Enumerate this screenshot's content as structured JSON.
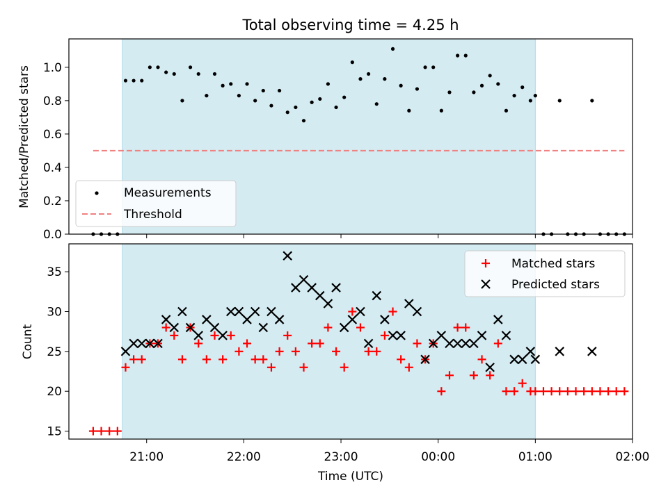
{
  "chart_data": [
    {
      "type": "scatter",
      "title": "Total observing time = 4.25 h",
      "ylabel": "Matched/Predicted stars",
      "xlabel": "",
      "xlim": [
        "20:12",
        "02:00"
      ],
      "ylim": [
        0,
        1.17
      ],
      "yticks": [
        "0.0",
        "0.2",
        "0.4",
        "0.6",
        "0.8",
        "1.0"
      ],
      "shaded_interval": [
        "20:45",
        "01:00"
      ],
      "grid": false,
      "legend": {
        "position": "lower-left",
        "entries": [
          "Measurements",
          "Threshold"
        ]
      },
      "series": [
        {
          "name": "Measurements",
          "color": "#000000",
          "marker": "dot",
          "points": [
            [
              "20:27",
              0.0
            ],
            [
              "20:32",
              0.0
            ],
            [
              "20:37",
              0.0
            ],
            [
              "20:42",
              0.0
            ],
            [
              "20:47",
              0.92
            ],
            [
              "20:52",
              0.92
            ],
            [
              "20:57",
              0.92
            ],
            [
              "21:02",
              1.0
            ],
            [
              "21:07",
              1.0
            ],
            [
              "21:12",
              0.97
            ],
            [
              "21:17",
              0.96
            ],
            [
              "21:22",
              0.8
            ],
            [
              "21:27",
              1.0
            ],
            [
              "21:32",
              0.96
            ],
            [
              "21:37",
              0.83
            ],
            [
              "21:42",
              0.96
            ],
            [
              "21:47",
              0.89
            ],
            [
              "21:52",
              0.9
            ],
            [
              "21:57",
              0.83
            ],
            [
              "22:02",
              0.9
            ],
            [
              "22:07",
              0.8
            ],
            [
              "22:12",
              0.86
            ],
            [
              "22:17",
              0.77
            ],
            [
              "22:22",
              0.86
            ],
            [
              "22:27",
              0.73
            ],
            [
              "22:32",
              0.76
            ],
            [
              "22:37",
              0.68
            ],
            [
              "22:42",
              0.79
            ],
            [
              "22:47",
              0.81
            ],
            [
              "22:52",
              0.9
            ],
            [
              "22:57",
              0.76
            ],
            [
              "23:02",
              0.82
            ],
            [
              "23:07",
              1.03
            ],
            [
              "23:12",
              0.93
            ],
            [
              "23:17",
              0.96
            ],
            [
              "23:22",
              0.78
            ],
            [
              "23:27",
              0.93
            ],
            [
              "23:32",
              1.11
            ],
            [
              "23:37",
              0.89
            ],
            [
              "23:42",
              0.74
            ],
            [
              "23:47",
              0.87
            ],
            [
              "23:52",
              1.0
            ],
            [
              "23:57",
              1.0
            ],
            [
              "00:02",
              0.74
            ],
            [
              "00:07",
              0.85
            ],
            [
              "00:12",
              1.07
            ],
            [
              "00:17",
              1.07
            ],
            [
              "00:22",
              0.85
            ],
            [
              "00:27",
              0.89
            ],
            [
              "00:32",
              0.95
            ],
            [
              "00:37",
              0.9
            ],
            [
              "00:42",
              0.74
            ],
            [
              "00:47",
              0.83
            ],
            [
              "00:52",
              0.88
            ],
            [
              "00:57",
              0.8
            ],
            [
              "01:00",
              0.83
            ],
            [
              "01:05",
              0.0
            ],
            [
              "01:10",
              0.0
            ],
            [
              "01:15",
              0.8
            ],
            [
              "01:20",
              0.0
            ],
            [
              "01:25",
              0.0
            ],
            [
              "01:30",
              0.0
            ],
            [
              "01:35",
              0.8
            ],
            [
              "01:40",
              0.0
            ],
            [
              "01:45",
              0.0
            ],
            [
              "01:50",
              0.0
            ],
            [
              "01:55",
              0.0
            ]
          ]
        },
        {
          "name": "Threshold",
          "color": "#f08080",
          "line": "dashed",
          "x": [
            "20:27",
            "01:55"
          ],
          "y": [
            0.5,
            0.5
          ]
        }
      ]
    },
    {
      "type": "scatter",
      "title": "",
      "ylabel": "Count",
      "xlabel": "Time (UTC)",
      "xlim": [
        "20:12",
        "02:00"
      ],
      "ylim": [
        14,
        38.5
      ],
      "yticks": [
        "15",
        "20",
        "25",
        "30",
        "35"
      ],
      "xticks": [
        "21:00",
        "22:00",
        "23:00",
        "00:00",
        "01:00",
        "02:00"
      ],
      "shaded_interval": [
        "20:45",
        "01:00"
      ],
      "grid": false,
      "legend": {
        "position": "top-right",
        "entries": [
          "Matched stars",
          "Predicted stars"
        ]
      },
      "series": [
        {
          "name": "Matched stars",
          "color": "#ff0000",
          "marker": "plus",
          "points": [
            [
              "20:27",
              15
            ],
            [
              "20:32",
              15
            ],
            [
              "20:37",
              15
            ],
            [
              "20:42",
              15
            ],
            [
              "20:47",
              23
            ],
            [
              "20:52",
              24
            ],
            [
              "20:57",
              24
            ],
            [
              "21:02",
              26
            ],
            [
              "21:07",
              26
            ],
            [
              "21:12",
              28
            ],
            [
              "21:17",
              27
            ],
            [
              "21:22",
              24
            ],
            [
              "21:27",
              28
            ],
            [
              "21:32",
              26
            ],
            [
              "21:37",
              24
            ],
            [
              "21:42",
              27
            ],
            [
              "21:47",
              24
            ],
            [
              "21:52",
              27
            ],
            [
              "21:57",
              25
            ],
            [
              "22:02",
              26
            ],
            [
              "22:07",
              24
            ],
            [
              "22:12",
              24
            ],
            [
              "22:17",
              23
            ],
            [
              "22:22",
              25
            ],
            [
              "22:27",
              27
            ],
            [
              "22:32",
              25
            ],
            [
              "22:37",
              23
            ],
            [
              "22:42",
              26
            ],
            [
              "22:47",
              26
            ],
            [
              "22:52",
              28
            ],
            [
              "22:57",
              25
            ],
            [
              "23:02",
              23
            ],
            [
              "23:07",
              30
            ],
            [
              "23:12",
              28
            ],
            [
              "23:17",
              25
            ],
            [
              "23:22",
              25
            ],
            [
              "23:27",
              27
            ],
            [
              "23:32",
              30
            ],
            [
              "23:37",
              24
            ],
            [
              "23:42",
              23
            ],
            [
              "23:47",
              26
            ],
            [
              "23:52",
              24
            ],
            [
              "23:57",
              26
            ],
            [
              "00:02",
              20
            ],
            [
              "00:07",
              22
            ],
            [
              "00:12",
              28
            ],
            [
              "00:17",
              28
            ],
            [
              "00:22",
              22
            ],
            [
              "00:27",
              24
            ],
            [
              "00:32",
              22
            ],
            [
              "00:37",
              26
            ],
            [
              "00:42",
              20
            ],
            [
              "00:47",
              20
            ],
            [
              "00:52",
              21
            ],
            [
              "00:57",
              20
            ],
            [
              "01:00",
              20
            ],
            [
              "01:05",
              20
            ],
            [
              "01:10",
              20
            ],
            [
              "01:15",
              20
            ],
            [
              "01:20",
              20
            ],
            [
              "01:25",
              20
            ],
            [
              "01:30",
              20
            ],
            [
              "01:35",
              20
            ],
            [
              "01:40",
              20
            ],
            [
              "01:45",
              20
            ],
            [
              "01:50",
              20
            ],
            [
              "01:55",
              20
            ]
          ]
        },
        {
          "name": "Predicted stars",
          "color": "#000000",
          "marker": "x",
          "points": [
            [
              "20:47",
              25
            ],
            [
              "20:52",
              26
            ],
            [
              "20:57",
              26
            ],
            [
              "21:02",
              26
            ],
            [
              "21:07",
              26
            ],
            [
              "21:12",
              29
            ],
            [
              "21:17",
              28
            ],
            [
              "21:22",
              30
            ],
            [
              "21:27",
              28
            ],
            [
              "21:32",
              27
            ],
            [
              "21:37",
              29
            ],
            [
              "21:42",
              28
            ],
            [
              "21:47",
              27
            ],
            [
              "21:52",
              30
            ],
            [
              "21:57",
              30
            ],
            [
              "22:02",
              29
            ],
            [
              "22:07",
              30
            ],
            [
              "22:12",
              28
            ],
            [
              "22:17",
              30
            ],
            [
              "22:22",
              29
            ],
            [
              "22:27",
              37
            ],
            [
              "22:32",
              33
            ],
            [
              "22:37",
              34
            ],
            [
              "22:42",
              33
            ],
            [
              "22:47",
              32
            ],
            [
              "22:52",
              31
            ],
            [
              "22:57",
              33
            ],
            [
              "23:02",
              28
            ],
            [
              "23:07",
              29
            ],
            [
              "23:12",
              30
            ],
            [
              "23:17",
              26
            ],
            [
              "23:22",
              32
            ],
            [
              "23:27",
              29
            ],
            [
              "23:32",
              27
            ],
            [
              "23:37",
              27
            ],
            [
              "23:42",
              31
            ],
            [
              "23:47",
              30
            ],
            [
              "23:52",
              24
            ],
            [
              "23:57",
              26
            ],
            [
              "00:02",
              27
            ],
            [
              "00:07",
              26
            ],
            [
              "00:12",
              26
            ],
            [
              "00:17",
              26
            ],
            [
              "00:22",
              26
            ],
            [
              "00:27",
              27
            ],
            [
              "00:32",
              23
            ],
            [
              "00:37",
              29
            ],
            [
              "00:42",
              27
            ],
            [
              "00:47",
              24
            ],
            [
              "00:52",
              24
            ],
            [
              "00:57",
              25
            ],
            [
              "01:00",
              24
            ],
            [
              "01:15",
              25
            ],
            [
              "01:35",
              25
            ]
          ]
        }
      ]
    }
  ]
}
